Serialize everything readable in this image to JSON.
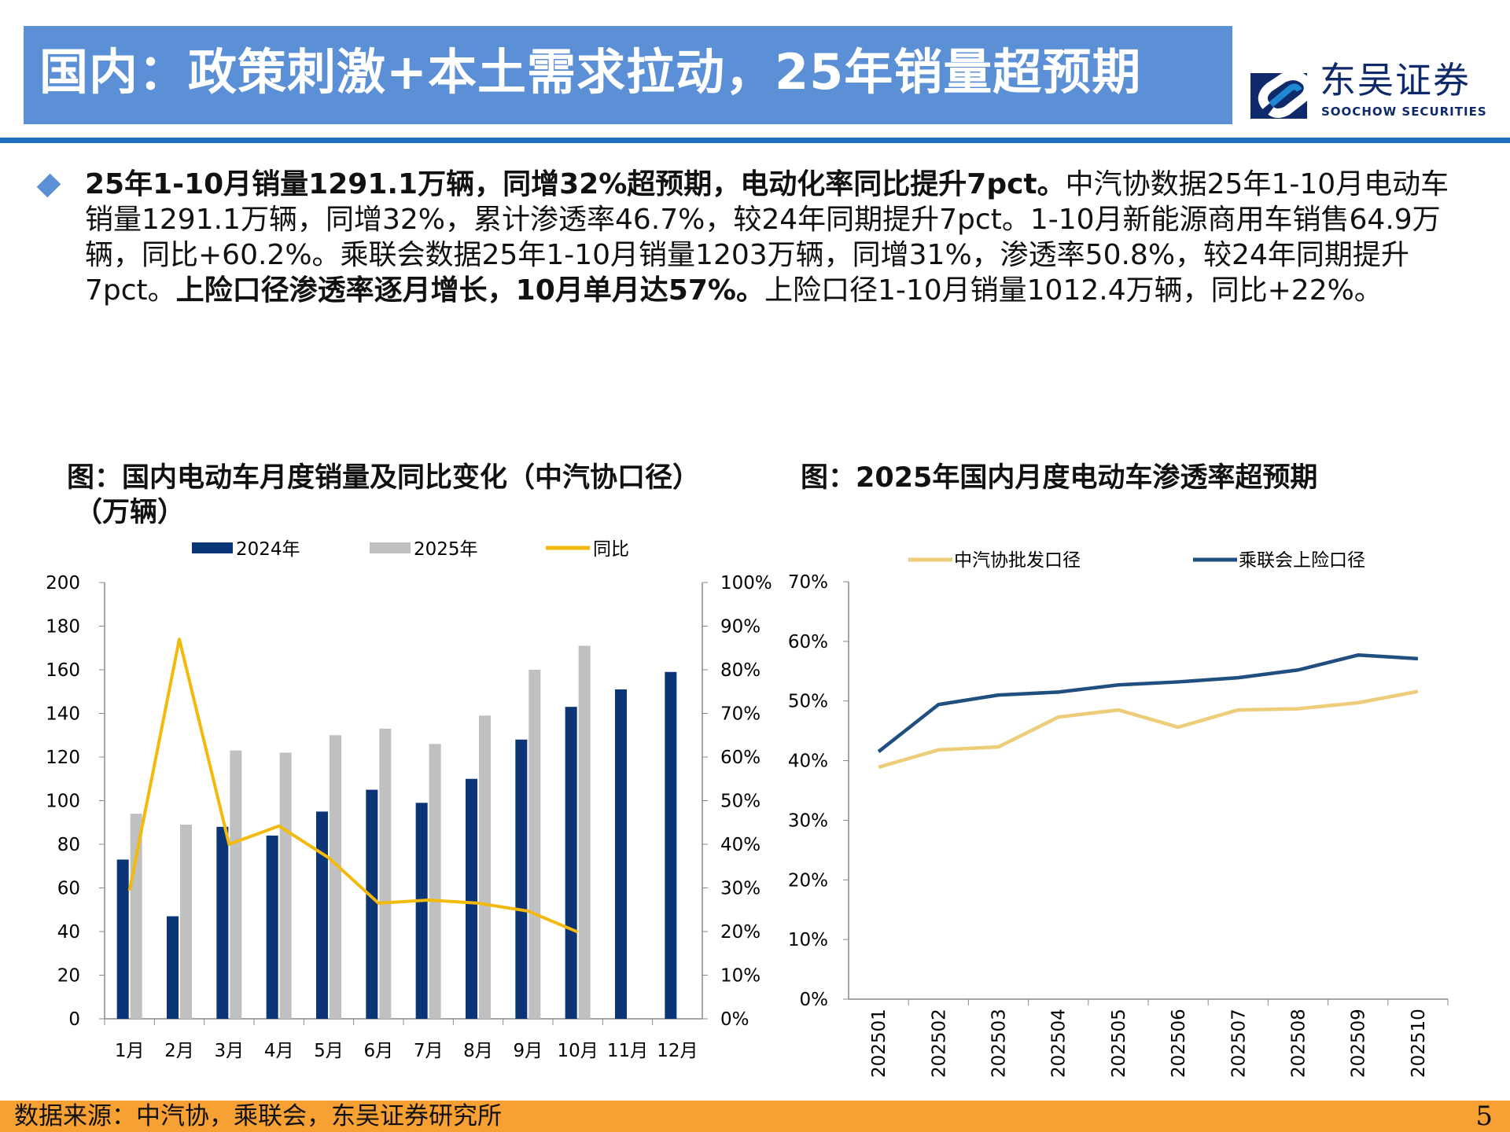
{
  "header": {
    "title": "国内：政策刺激+本土需求拉动，25年销量超预期",
    "logo_cn": "东吴证券",
    "logo_en": "SOOCHOW SECURITIES"
  },
  "body": {
    "bold1": "25年1-10月销量1291.1万辆，同增32%超预期，电动化率同比提升7pct。",
    "text1": "中汽协数据25年1-10月电动车销量1291.1万辆，同增32%，累计渗透率46.7%，较24年同期提升7pct。1-10月新能源商用车销售64.9万辆，同比+60.2%。乘联会数据25年1-10月销量1203万辆，同增31%，渗透率50.8%，较24年同期提升7pct。",
    "bold2": "上险口径渗透率逐月增长，10月单月达57%。",
    "text2": "上险口径1-10月销量1012.4万辆，同比+22%。"
  },
  "footer": {
    "source": "数据来源：中汽协，乘联会，东吴证券研究所",
    "page": "5"
  },
  "colors": {
    "navy": "#0B3577",
    "gray": "#C0C0C0",
    "gold": "#F2BA0C",
    "light_gold": "#EDCD7A",
    "steel_blue": "#1F4E7F",
    "title_bar": "#5B8FD6",
    "footer": "#F7A034"
  },
  "chart_data": [
    {
      "type": "bar+line",
      "title": "图：国内电动车月度销量及同比变化（中汽协口径）",
      "ylabel": "（万辆）",
      "categories": [
        "1月",
        "2月",
        "3月",
        "4月",
        "5月",
        "6月",
        "7月",
        "8月",
        "9月",
        "10月",
        "11月",
        "12月"
      ],
      "ylim": [
        0,
        200
      ],
      "yticks": [
        "0",
        "20",
        "40",
        "60",
        "80",
        "100",
        "120",
        "140",
        "160",
        "180",
        "200"
      ],
      "y2lim": [
        0,
        100
      ],
      "y2ticks": [
        "0%",
        "10%",
        "20%",
        "30%",
        "40%",
        "50%",
        "60%",
        "70%",
        "80%",
        "90%",
        "100%"
      ],
      "legend_position": "top",
      "series": [
        {
          "name": "2024年",
          "kind": "bar",
          "values": [
            73,
            47,
            88,
            84,
            95,
            105,
            99,
            110,
            128,
            143,
            151,
            159
          ]
        },
        {
          "name": "2025年",
          "kind": "bar",
          "values": [
            94,
            89,
            123,
            122,
            130,
            133,
            126,
            139,
            160,
            171,
            null,
            null
          ]
        },
        {
          "name": "同比",
          "kind": "line",
          "axis": "right",
          "values": [
            29.4,
            87,
            40,
            44.2,
            36.9,
            26.5,
            27.2,
            26.5,
            24.7,
            19.9,
            null,
            null
          ]
        }
      ]
    },
    {
      "type": "line",
      "title": "图：2025年国内月度电动车渗透率超预期",
      "categories": [
        "202501",
        "202502",
        "202503",
        "202504",
        "202505",
        "202506",
        "202507",
        "202508",
        "202509",
        "202510"
      ],
      "ylim": [
        0,
        70
      ],
      "yticks": [
        "0%",
        "10%",
        "20%",
        "30%",
        "40%",
        "50%",
        "60%",
        "70%"
      ],
      "legend_position": "top",
      "series": [
        {
          "name": "中汽协批发口径",
          "values": [
            38.9,
            41.8,
            42.3,
            47.3,
            48.5,
            45.6,
            48.5,
            48.7,
            49.7,
            51.6
          ]
        },
        {
          "name": "乘联会上险口径",
          "values": [
            41.5,
            49.4,
            51.0,
            51.5,
            52.7,
            53.2,
            53.9,
            55.2,
            57.7,
            57.1
          ]
        }
      ]
    }
  ]
}
